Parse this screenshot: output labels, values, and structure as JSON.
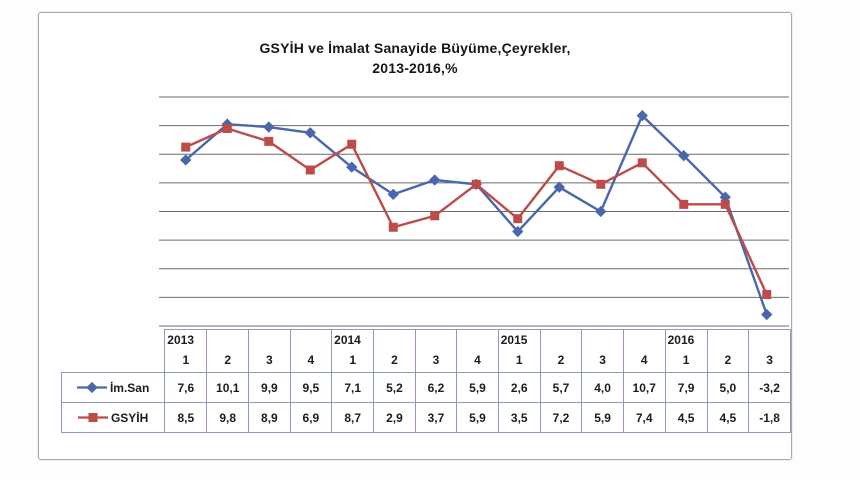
{
  "chart_data": {
    "type": "line",
    "title": "GSYİH ve İmalat Sanayide Büyüme,Çeyrekler,",
    "subtitle": "2013-2016,%",
    "x_years": [
      "2013",
      "",
      "",
      "",
      "2014",
      "",
      "",
      "",
      "2015",
      "",
      "",
      "",
      "2016",
      "",
      ""
    ],
    "x_quarters": [
      "1",
      "2",
      "3",
      "4",
      "1",
      "2",
      "3",
      "4",
      "1",
      "2",
      "3",
      "4",
      "1",
      "2",
      "3"
    ],
    "series": [
      {
        "name": "İm.San",
        "color": "#4a67ad",
        "marker": "diamond",
        "values": [
          7.6,
          10.1,
          9.9,
          9.5,
          7.1,
          5.2,
          6.2,
          5.9,
          2.6,
          5.7,
          4.0,
          10.7,
          7.9,
          5.0,
          -3.2
        ],
        "labels": [
          "7,6",
          "10,1",
          "9,9",
          "9,5",
          "7,1",
          "5,2",
          "6,2",
          "5,9",
          "2,6",
          "5,7",
          "4,0",
          "10,7",
          "7,9",
          "5,0",
          "-3,2"
        ]
      },
      {
        "name": "GSYİH",
        "color": "#bd4b47",
        "marker": "square",
        "values": [
          8.5,
          9.8,
          8.9,
          6.9,
          8.7,
          2.9,
          3.7,
          5.9,
          3.5,
          7.2,
          5.9,
          7.4,
          4.5,
          4.5,
          -1.8
        ],
        "labels": [
          "8,5",
          "9,8",
          "8,9",
          "6,9",
          "8,7",
          "2,9",
          "3,7",
          "5,9",
          "3,5",
          "7,2",
          "5,9",
          "7,4",
          "4,5",
          "4,5",
          "-1,8"
        ]
      }
    ],
    "ylim": [
      -4,
      12
    ],
    "grid_step": 2,
    "grid": true,
    "legend_position": "table-left",
    "xlabel": "",
    "ylabel": ""
  }
}
